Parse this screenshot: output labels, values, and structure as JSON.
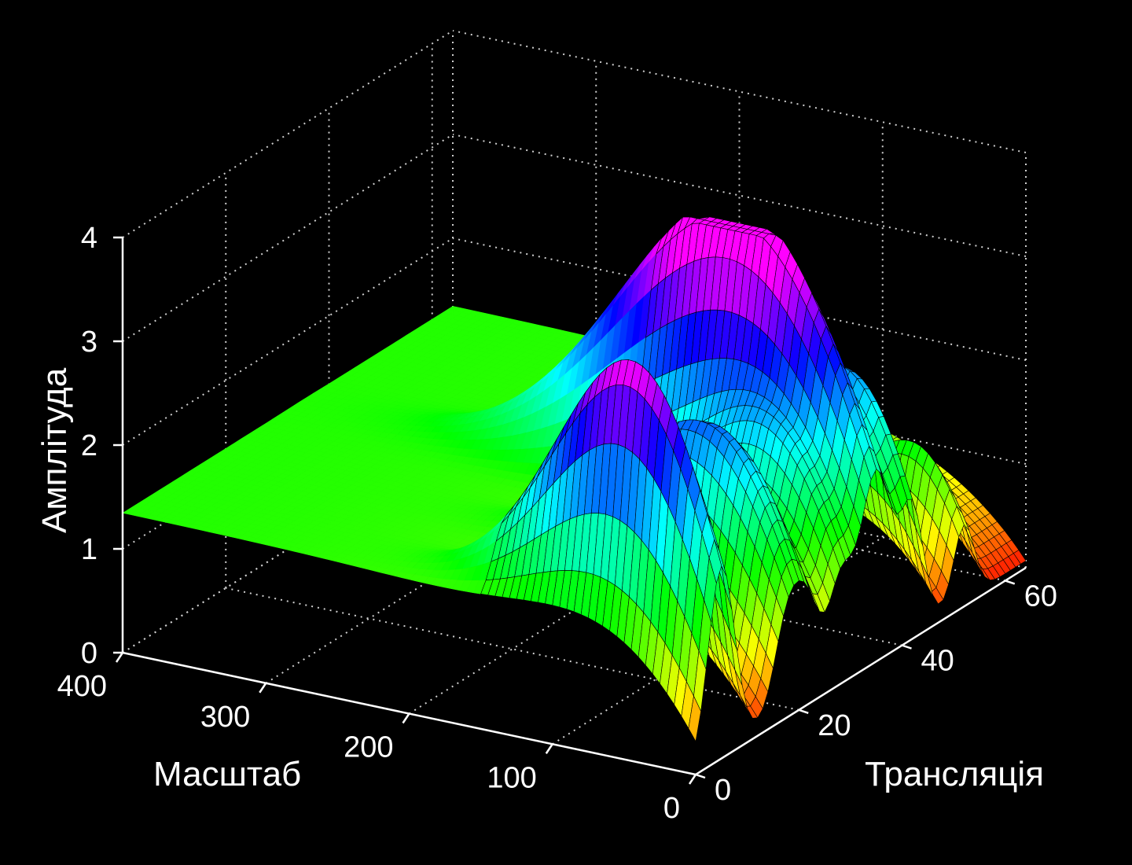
{
  "chart_data": {
    "type": "surface",
    "title": "",
    "xlabel": "Трансляція",
    "ylabel": "Масштаб",
    "zlabel": "Амплітуда",
    "x_ticks": [
      "0",
      "20",
      "40",
      "60"
    ],
    "y_ticks": [
      "0",
      "100",
      "200",
      "300",
      "400"
    ],
    "z_ticks": [
      "0",
      "1",
      "2",
      "3",
      "4"
    ],
    "xlim": [
      0,
      64
    ],
    "ylim": [
      0,
      400
    ],
    "zlim": [
      0,
      4
    ],
    "grid": true,
    "colormap": "hsv",
    "background": "#000000",
    "axis_color": "#ffffff",
    "ridges": [
      {
        "translation": 5,
        "peak_amplitude": 3.2,
        "scale_at_peak": 55
      },
      {
        "translation": 18,
        "peak_amplitude": 1.8,
        "scale_at_peak": 60
      },
      {
        "translation": 22,
        "peak_amplitude": 1.3,
        "scale_at_peak": 40
      },
      {
        "translation": 28,
        "peak_amplitude": 1.6,
        "scale_at_peak": 45
      },
      {
        "translation": 35,
        "peak_amplitude": 3.5,
        "scale_at_peak": 90
      },
      {
        "translation": 42,
        "peak_amplitude": 1.9,
        "scale_at_peak": 35
      },
      {
        "translation": 52,
        "peak_amplitude": 1.2,
        "scale_at_peak": 25
      }
    ],
    "plateau_amplitude": 1.35
  }
}
